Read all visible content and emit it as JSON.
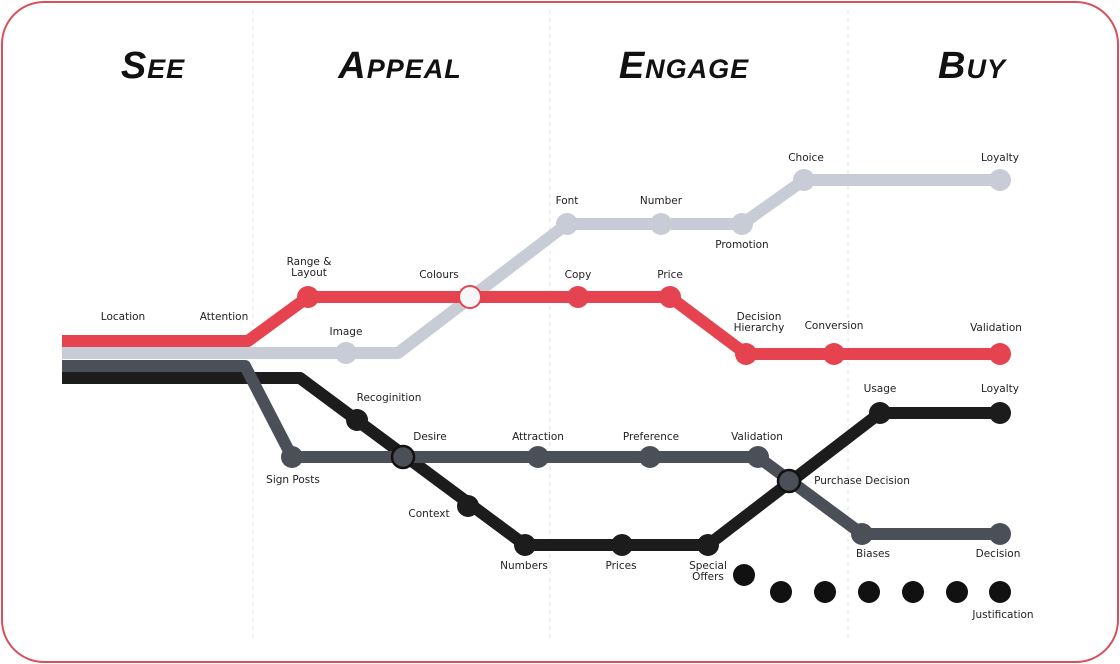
{
  "stages": [
    "See",
    "Appeal",
    "Engage",
    "Buy"
  ],
  "stations": [
    "Location",
    "Attention",
    [
      "Range &",
      "Layout"
    ],
    "Colours",
    "Image",
    "Font",
    "Number",
    "Promotion",
    "Choice",
    "Loyalty",
    "Copy",
    "Price",
    [
      "Decision",
      "Hierarchy"
    ],
    "Conversion",
    "Validation",
    "Recoginition",
    "Desire",
    "Attraction",
    "Preference",
    "Validation",
    "Usage",
    "Loyalty",
    "Sign Posts",
    "Context",
    "Purchase Decision",
    "Numbers",
    "Prices",
    [
      "Special",
      "Offers"
    ],
    "Biases",
    "Decision",
    "Justification"
  ]
}
